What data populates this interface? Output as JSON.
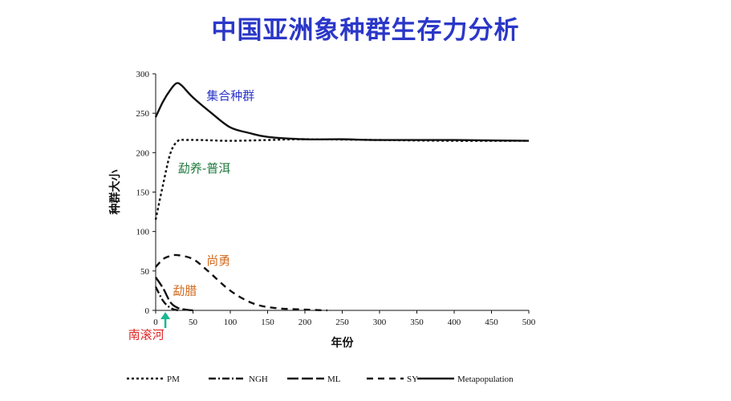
{
  "title": "中国亚洲象种群生存力分析",
  "chart_data": {
    "type": "line",
    "title": "中国亚洲象种群生存力分析",
    "xlabel": "年份",
    "ylabel": "种群大小",
    "xlim": [
      0,
      500
    ],
    "ylim": [
      0,
      300
    ],
    "x_ticks": [
      "0",
      "50",
      "100",
      "150",
      "200",
      "250",
      "300",
      "350",
      "400",
      "450",
      "500"
    ],
    "y_ticks": [
      "0",
      "50",
      "100",
      "150",
      "200",
      "250",
      "300"
    ],
    "grid": false,
    "legend_position": "bottom",
    "series": [
      {
        "name": "PM",
        "dash": "3,3",
        "x": [
          0,
          10,
          20,
          30,
          40,
          60,
          100,
          150,
          200,
          300,
          400,
          500
        ],
        "y": [
          115,
          160,
          200,
          215,
          216,
          216,
          215,
          216,
          217,
          216,
          215,
          215
        ]
      },
      {
        "name": "NGH",
        "dash": "9,3,2,3",
        "x": [
          0,
          10,
          20,
          30
        ],
        "y": [
          30,
          12,
          3,
          0
        ]
      },
      {
        "name": "ML",
        "dash": "14,4",
        "x": [
          0,
          10,
          20,
          30,
          40,
          50
        ],
        "y": [
          42,
          28,
          10,
          3,
          1,
          0
        ]
      },
      {
        "name": "SY",
        "dash": "8,6",
        "x": [
          0,
          10,
          20,
          30,
          50,
          70,
          100,
          130,
          160,
          200,
          230
        ],
        "y": [
          55,
          65,
          69,
          70,
          65,
          50,
          25,
          9,
          3,
          1,
          0
        ]
      },
      {
        "name": "Metapopulation",
        "dash": "",
        "x": [
          0,
          10,
          20,
          28,
          35,
          50,
          75,
          100,
          125,
          150,
          200,
          250,
          300,
          400,
          500
        ],
        "y": [
          245,
          265,
          280,
          288,
          285,
          270,
          250,
          232,
          225,
          220,
          217,
          217,
          216,
          216,
          215
        ]
      }
    ],
    "annotations": [
      {
        "text": "集合种群",
        "color": "#2b37c8",
        "x": 68,
        "y": 267
      },
      {
        "text": "勐养-普洱",
        "color": "#1f7a3e",
        "x": 30,
        "y": 175
      },
      {
        "text": "尚勇",
        "color": "#d2691e",
        "x": 68,
        "y": 58
      },
      {
        "text": "勐腊",
        "color": "#d2691e",
        "x": 23,
        "y": 20
      },
      {
        "text": "南滚河",
        "color": "#e02020",
        "x": -37,
        "y": -36
      }
    ],
    "arrow": {
      "color": "#19b890",
      "x": 13
    }
  }
}
